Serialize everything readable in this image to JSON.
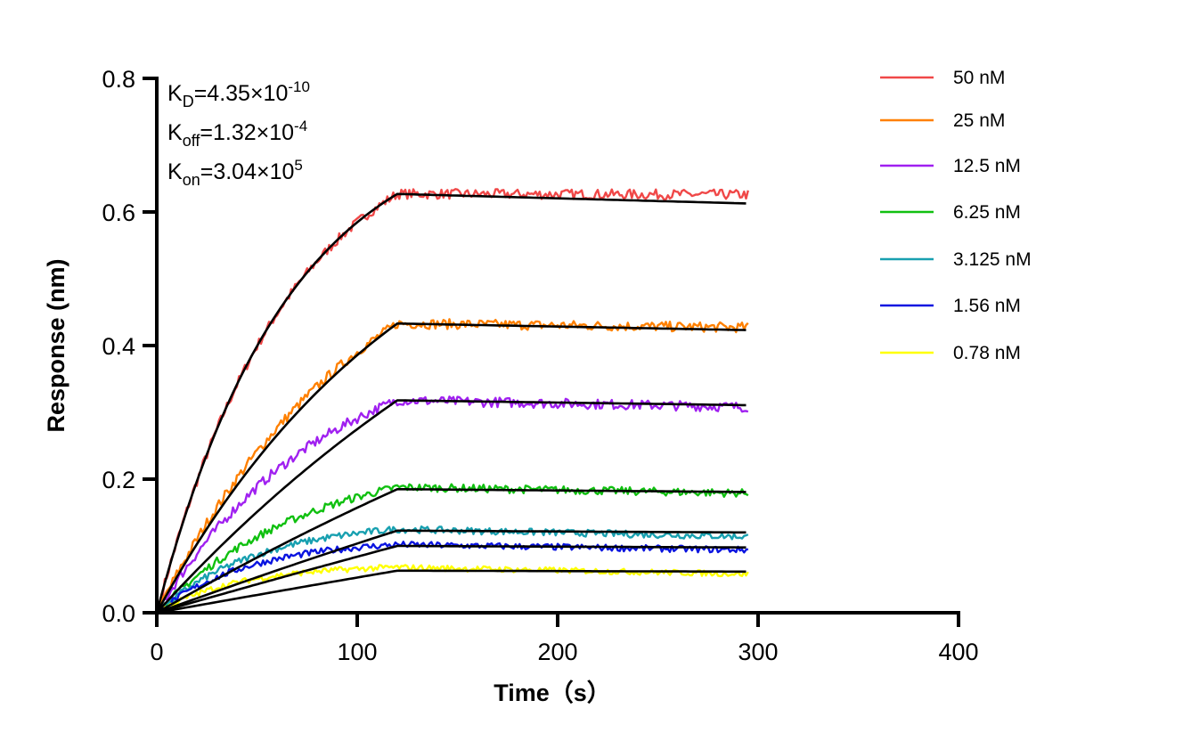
{
  "chart_data": {
    "type": "line",
    "xlabel": "Time（s）",
    "ylabel": "Response (nm)",
    "xlim": [
      0,
      400
    ],
    "ylim": [
      0,
      0.8
    ],
    "xticks": [
      "0",
      "100",
      "200",
      "300",
      "400"
    ],
    "yticks": [
      "0.0",
      "0.2",
      "0.4",
      "0.6",
      "0.8"
    ],
    "grid": false,
    "legend_position": "right",
    "association_end_s": 120,
    "dissociation_end_s": 295,
    "annotations": {
      "kd": {
        "label": "K",
        "sub": "D",
        "value": "=4.35×10",
        "exp": "-10"
      },
      "koff": {
        "label": "K",
        "sub": "off",
        "value": "=1.32×10",
        "exp": "-4"
      },
      "kon": {
        "label": "K",
        "sub": "on",
        "value": "=3.04×10",
        "exp": "5"
      }
    },
    "fit": {
      "kon": 304000,
      "koff": 0.000132,
      "color": "#000000"
    },
    "series": [
      {
        "name": "50 nM",
        "conc_nM": 50,
        "color": "#f04848",
        "response_at_120s": 0.627,
        "response_at_295s": 0.626
      },
      {
        "name": "25 nM",
        "conc_nM": 25,
        "color": "#ff8000",
        "response_at_120s": 0.433,
        "response_at_295s": 0.427
      },
      {
        "name": "12.5 nM",
        "conc_nM": 12.5,
        "color": "#a020f0",
        "response_at_120s": 0.318,
        "response_at_295s": 0.308
      },
      {
        "name": "6.25 nM",
        "conc_nM": 6.25,
        "color": "#10c010",
        "response_at_120s": 0.188,
        "response_at_295s": 0.179
      },
      {
        "name": "3.125 nM",
        "conc_nM": 3.125,
        "color": "#18a0b0",
        "response_at_120s": 0.125,
        "response_at_295s": 0.114
      },
      {
        "name": "1.56 nM",
        "conc_nM": 1.56,
        "color": "#0a14e0",
        "response_at_120s": 0.102,
        "response_at_295s": 0.094
      },
      {
        "name": "0.78 nM",
        "conc_nM": 0.78,
        "color": "#ffff00",
        "response_at_120s": 0.068,
        "response_at_295s": 0.058
      }
    ],
    "fit_response_at_120s": [
      0.627,
      0.433,
      0.318,
      0.185,
      0.123,
      0.1,
      0.063
    ]
  }
}
